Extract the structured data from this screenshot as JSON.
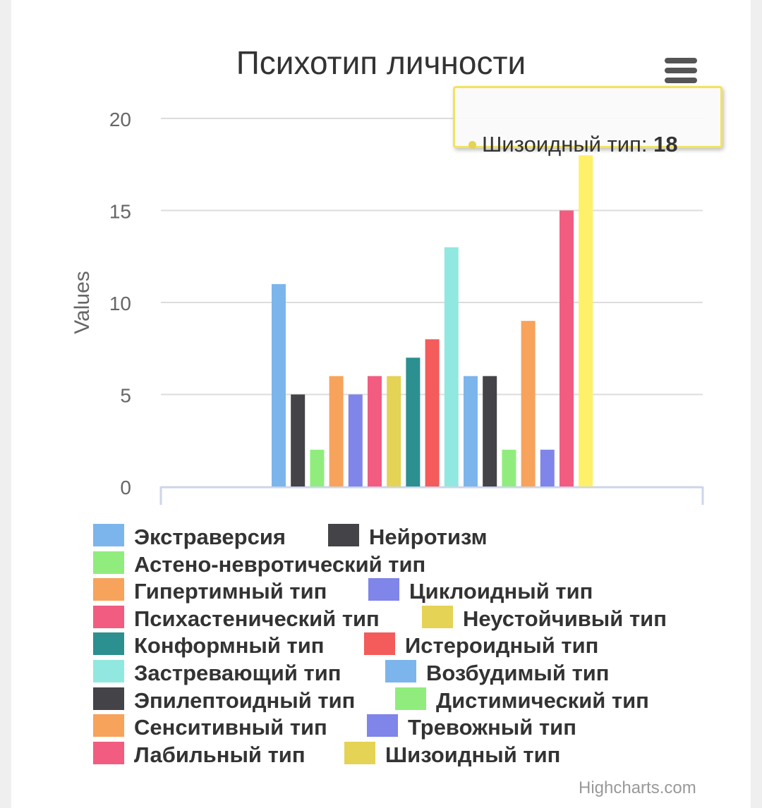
{
  "chart_data": {
    "type": "bar",
    "title": "Психотип личности",
    "ylabel": "Values",
    "ylim": [
      0,
      20
    ],
    "yticks": [
      0,
      5,
      10,
      15,
      20
    ],
    "grid": true,
    "legend_position": "bottom",
    "series": [
      {
        "name": "Экстраверсия",
        "value": 11,
        "color": "#7cb5ec"
      },
      {
        "name": "Нейротизм",
        "value": 5,
        "color": "#434348"
      },
      {
        "name": "Астено-невротический тип",
        "value": 2,
        "color": "#90ed7d"
      },
      {
        "name": "Гипертимный тип",
        "value": 6,
        "color": "#f7a35c"
      },
      {
        "name": "Циклоидный тип",
        "value": 5,
        "color": "#8085e9"
      },
      {
        "name": "Психастенический тип",
        "value": 6,
        "color": "#f15c80"
      },
      {
        "name": "Неустойчивый тип",
        "value": 6,
        "color": "#e4d354"
      },
      {
        "name": "Конформный тип",
        "value": 7,
        "color": "#2b908f"
      },
      {
        "name": "Истероидный тип",
        "value": 8,
        "color": "#f45b5b"
      },
      {
        "name": "Застревающий тип",
        "value": 13,
        "color": "#91e8e1"
      },
      {
        "name": "Возбудимый тип",
        "value": 6,
        "color": "#7cb5ec"
      },
      {
        "name": "Эпилептоидный тип",
        "value": 6,
        "color": "#434348"
      },
      {
        "name": "Дистимический тип",
        "value": 2,
        "color": "#90ed7d"
      },
      {
        "name": "Сенситивный тип",
        "value": 9,
        "color": "#f7a35c"
      },
      {
        "name": "Тревожный тип",
        "value": 2,
        "color": "#8085e9"
      },
      {
        "name": "Лабильный тип",
        "value": 15,
        "color": "#f15c80"
      },
      {
        "name": "Шизоидный тип",
        "value": 18,
        "color": "#e4d354",
        "hover_color": "#fff06a"
      }
    ]
  },
  "tooltip": {
    "series_name": "Шизоидный тип",
    "separator": ": ",
    "value": "18",
    "color": "#e4d354"
  },
  "menu": {
    "icon": "hamburger-menu-icon"
  },
  "credits": "Highcharts.com"
}
